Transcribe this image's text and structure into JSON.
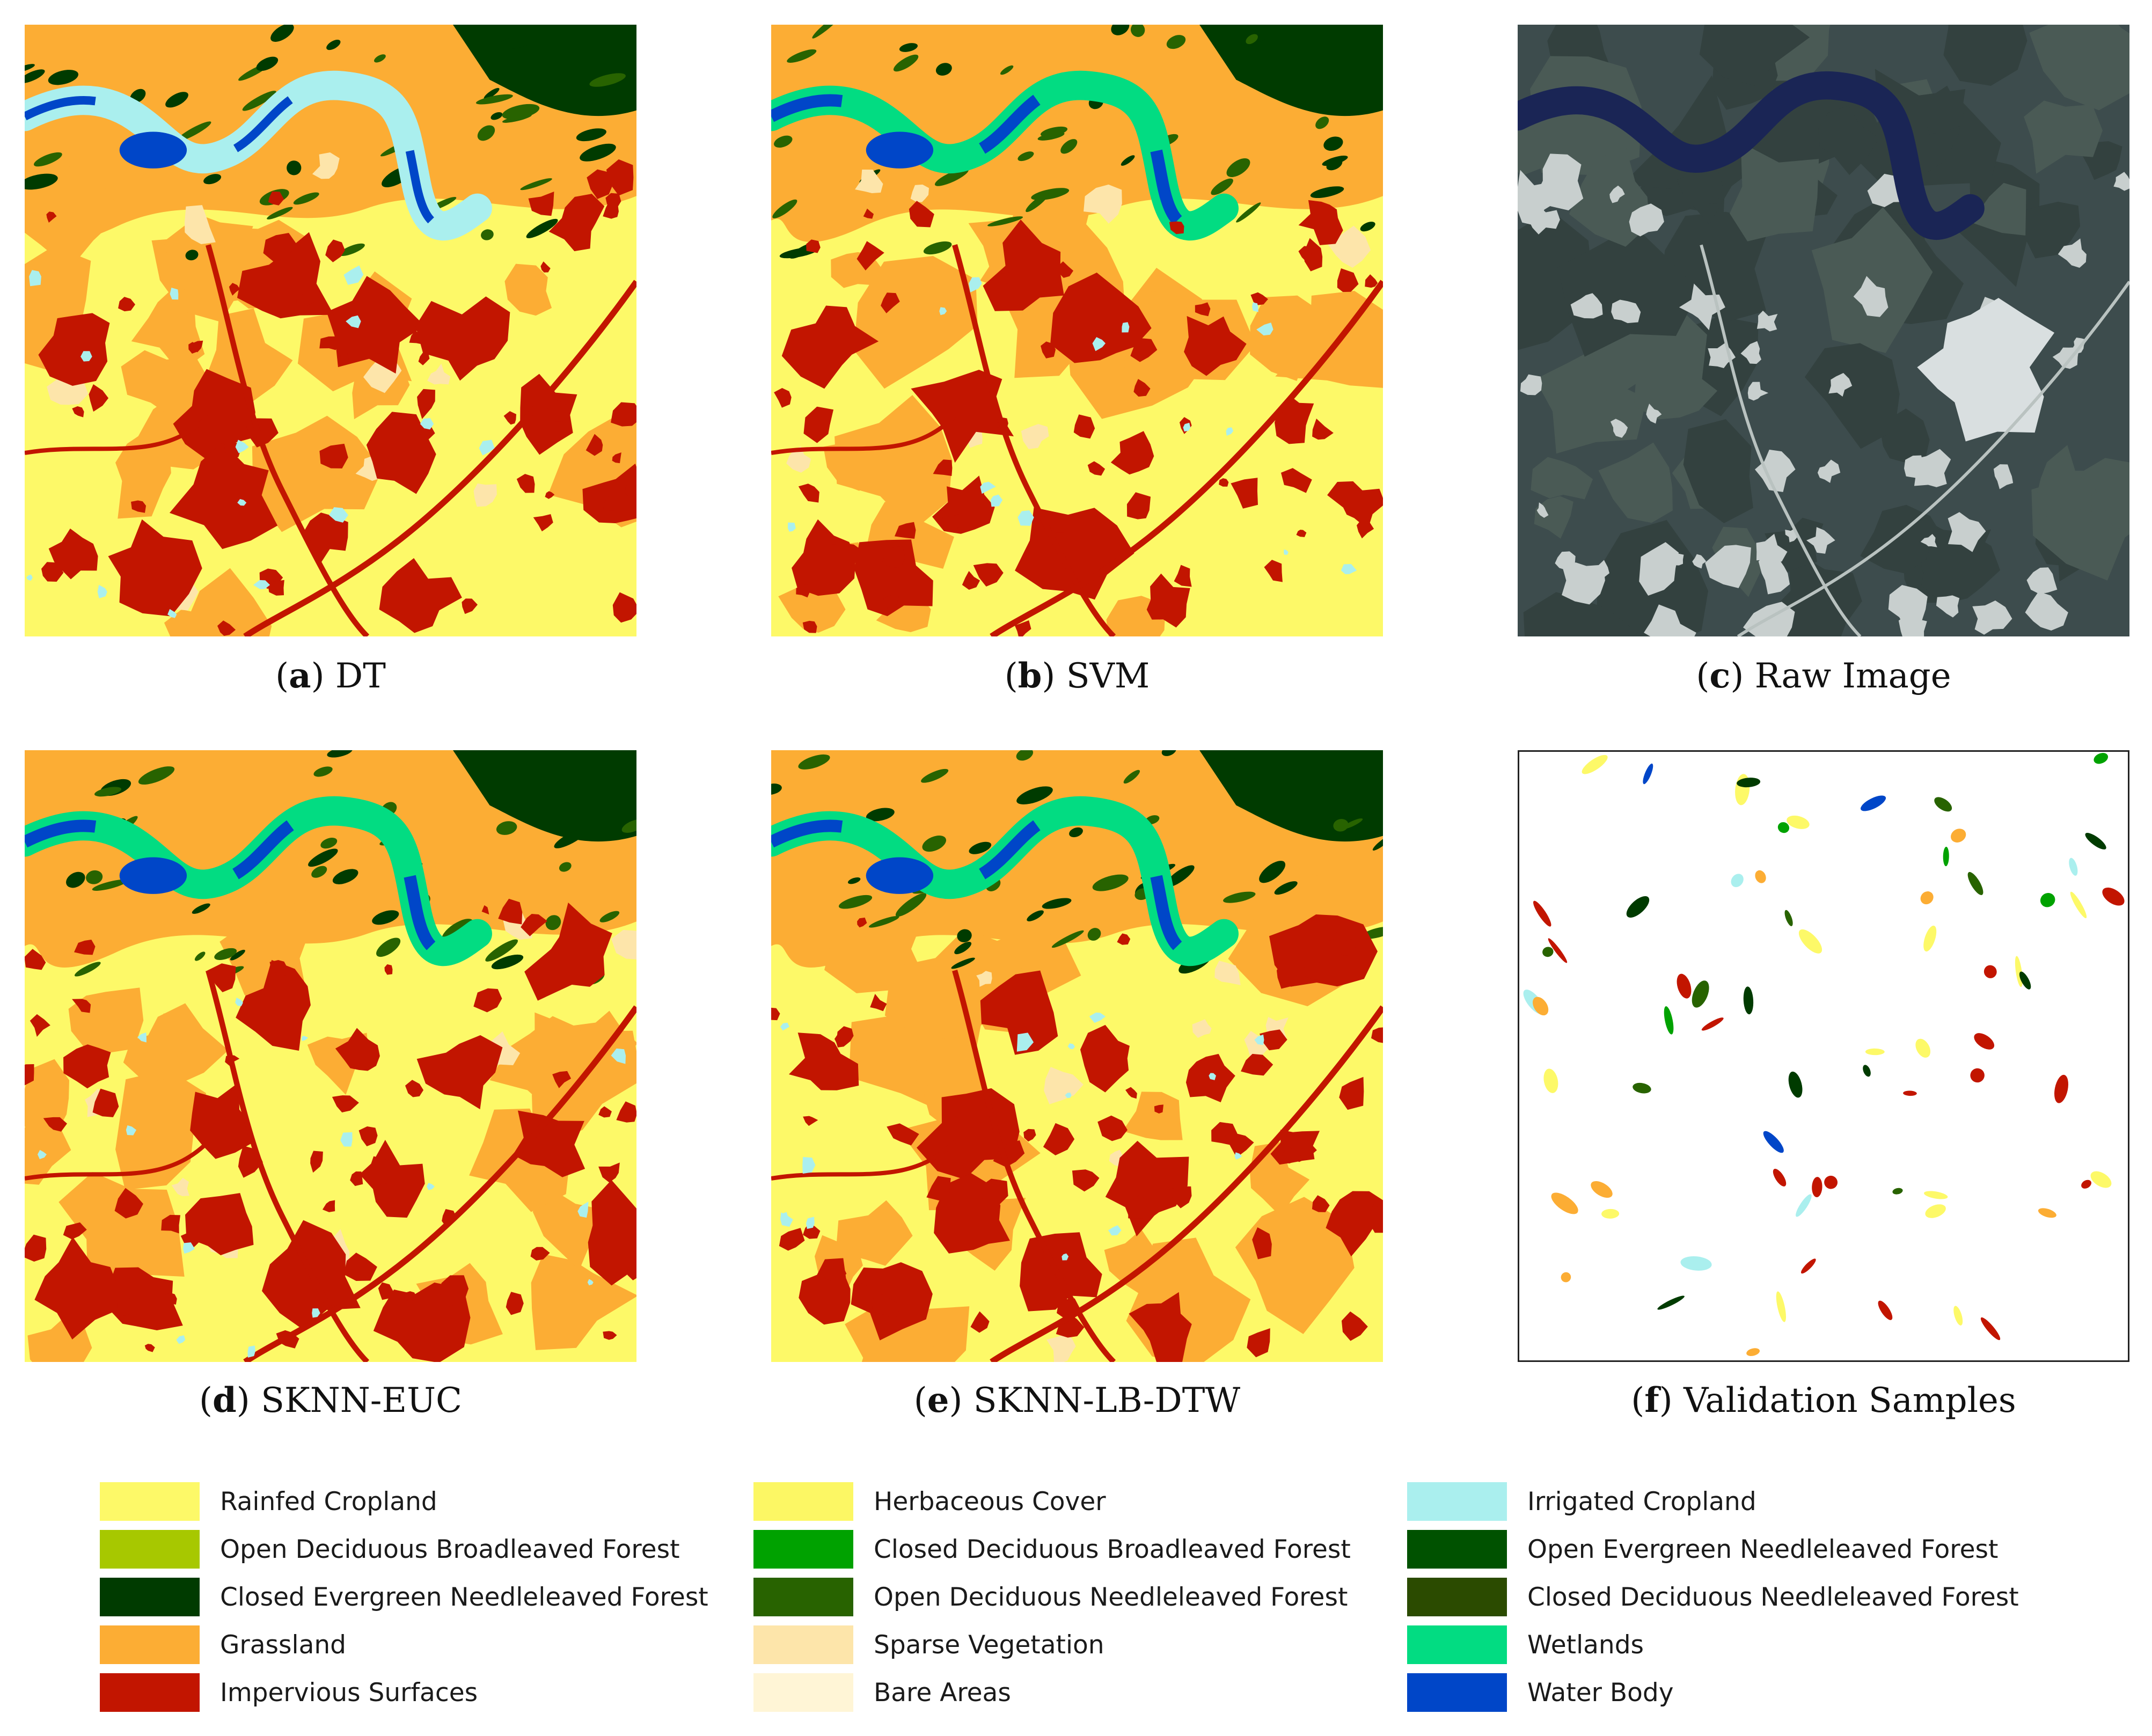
{
  "figure": {
    "panels": [
      {
        "id": "a",
        "letter": "a",
        "label": "DT",
        "kind": "classification"
      },
      {
        "id": "b",
        "letter": "b",
        "label": "SVM",
        "kind": "classification"
      },
      {
        "id": "c",
        "letter": "c",
        "label": "Raw Image",
        "kind": "raw"
      },
      {
        "id": "d",
        "letter": "d",
        "label": "SKNN-EUC",
        "kind": "classification"
      },
      {
        "id": "e",
        "letter": "e",
        "label": "SKNN-LB-DTW",
        "kind": "classification"
      },
      {
        "id": "f",
        "letter": "f",
        "label": "Validation Samples",
        "kind": "validation"
      }
    ],
    "legend": [
      {
        "label": "Rainfed Cropland",
        "color": "#fdf968"
      },
      {
        "label": "Herbaceous Cover",
        "color": "#fcf764"
      },
      {
        "label": "Irrigated Cropland",
        "color": "#aaefee"
      },
      {
        "label": "Open Deciduous Broadleaved Forest",
        "color": "#a7c800"
      },
      {
        "label": "Closed Deciduous Broadleaved Forest",
        "color": "#00a200"
      },
      {
        "label": "Open Evergreen Needleleaved Forest",
        "color": "#005200"
      },
      {
        "label": "Closed Evergreen Needleleaved Forest",
        "color": "#003b00"
      },
      {
        "label": "Open Deciduous Needleleaved Forest",
        "color": "#286300"
      },
      {
        "label": "Closed Deciduous Needleleaved Forest",
        "color": "#2b4b00"
      },
      {
        "label": "Grassland",
        "color": "#fcad34"
      },
      {
        "label": "Sparse Vegetation",
        "color": "#fde5aa"
      },
      {
        "label": "Wetlands",
        "color": "#02dc82"
      },
      {
        "label": "Impervious Surfaces",
        "color": "#c21500"
      },
      {
        "label": "Bare Areas",
        "color": "#fff5d6"
      },
      {
        "label": "Water Body",
        "color": "#0046c8"
      }
    ]
  }
}
